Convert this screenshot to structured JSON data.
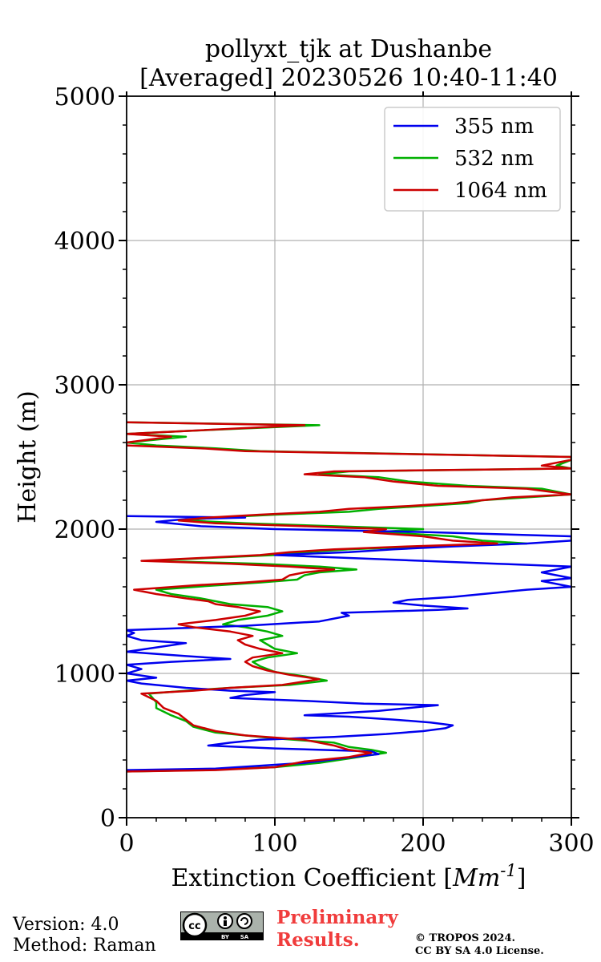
{
  "chart_data": {
    "type": "line",
    "title": "pollyxt_tjk at Dushanbe",
    "subtitle": "[Averaged] 20230526 10:40-11:40",
    "xlabel": "Extinction Coefficient",
    "xlabel_unit": "Mm",
    "xlabel_unit_exp": "-1",
    "ylabel": "Height (m)",
    "xlim": [
      0,
      300
    ],
    "ylim": [
      0,
      5000
    ],
    "xticks": [
      0,
      100,
      200,
      300
    ],
    "yticks": [
      0,
      1000,
      2000,
      3000,
      4000,
      5000
    ],
    "xtick_labels": [
      "0",
      "100",
      "200",
      "300"
    ],
    "ytick_labels": [
      "0",
      "1000",
      "2000",
      "3000",
      "4000",
      "5000"
    ],
    "grid": true,
    "legend_position": "top-right",
    "series": [
      {
        "name": "355 nm",
        "color": "#0000ee",
        "points": [
          [
            0,
            330
          ],
          [
            60,
            340
          ],
          [
            120,
            380
          ],
          [
            160,
            430
          ],
          [
            170,
            440
          ],
          [
            165,
            460
          ],
          [
            100,
            480
          ],
          [
            55,
            500
          ],
          [
            70,
            520
          ],
          [
            90,
            540
          ],
          [
            140,
            560
          ],
          [
            175,
            580
          ],
          [
            200,
            600
          ],
          [
            215,
            620
          ],
          [
            220,
            640
          ],
          [
            205,
            660
          ],
          [
            180,
            680
          ],
          [
            150,
            700
          ],
          [
            120,
            710
          ],
          [
            170,
            740
          ],
          [
            200,
            770
          ],
          [
            210,
            780
          ],
          [
            160,
            790
          ],
          [
            120,
            810
          ],
          [
            70,
            830
          ],
          [
            80,
            850
          ],
          [
            100,
            870
          ],
          [
            70,
            880
          ],
          [
            40,
            900
          ],
          [
            10,
            930
          ],
          [
            0,
            950
          ],
          [
            20,
            970
          ],
          [
            0,
            1000
          ],
          [
            10,
            1030
          ],
          [
            0,
            1060
          ],
          [
            30,
            1080
          ],
          [
            70,
            1100
          ],
          [
            40,
            1120
          ],
          [
            0,
            1150
          ],
          [
            20,
            1180
          ],
          [
            40,
            1210
          ],
          [
            10,
            1230
          ],
          [
            0,
            1260
          ],
          [
            5,
            1280
          ],
          [
            0,
            1300
          ],
          [
            80,
            1330
          ],
          [
            130,
            1360
          ],
          [
            150,
            1400
          ],
          [
            145,
            1420
          ],
          [
            210,
            1440
          ],
          [
            230,
            1450
          ],
          [
            200,
            1470
          ],
          [
            180,
            1490
          ],
          [
            190,
            1510
          ],
          [
            220,
            1530
          ],
          [
            250,
            1560
          ],
          [
            270,
            1580
          ],
          [
            300,
            1600
          ],
          [
            290,
            1620
          ],
          [
            280,
            1640
          ],
          [
            300,
            1660
          ],
          [
            280,
            1700
          ],
          [
            300,
            1740
          ],
          [
            250,
            1760
          ],
          [
            200,
            1780
          ],
          [
            150,
            1800
          ],
          [
            100,
            1820
          ],
          [
            150,
            1840
          ],
          [
            180,
            1860
          ],
          [
            220,
            1880
          ],
          [
            270,
            1900
          ],
          [
            300,
            1920
          ],
          [
            300,
            1950
          ],
          [
            200,
            1980
          ],
          [
            100,
            2000
          ],
          [
            50,
            2020
          ],
          [
            20,
            2050
          ],
          [
            40,
            2070
          ],
          [
            80,
            2080
          ],
          [
            0,
            2090
          ]
        ]
      },
      {
        "name": "532 nm",
        "color": "#00b000",
        "points": [
          [
            0,
            320
          ],
          [
            50,
            330
          ],
          [
            100,
            350
          ],
          [
            130,
            380
          ],
          [
            150,
            410
          ],
          [
            175,
            450
          ],
          [
            165,
            470
          ],
          [
            150,
            490
          ],
          [
            140,
            520
          ],
          [
            100,
            550
          ],
          [
            60,
            590
          ],
          [
            45,
            630
          ],
          [
            40,
            670
          ],
          [
            30,
            710
          ],
          [
            20,
            760
          ],
          [
            20,
            800
          ],
          [
            15,
            860
          ],
          [
            40,
            880
          ],
          [
            70,
            900
          ],
          [
            110,
            920
          ],
          [
            135,
            950
          ],
          [
            120,
            980
          ],
          [
            100,
            1010
          ],
          [
            90,
            1050
          ],
          [
            85,
            1080
          ],
          [
            95,
            1110
          ],
          [
            115,
            1140
          ],
          [
            100,
            1170
          ],
          [
            95,
            1200
          ],
          [
            90,
            1230
          ],
          [
            105,
            1260
          ],
          [
            95,
            1290
          ],
          [
            80,
            1320
          ],
          [
            65,
            1340
          ],
          [
            75,
            1370
          ],
          [
            95,
            1400
          ],
          [
            105,
            1430
          ],
          [
            95,
            1460
          ],
          [
            70,
            1480
          ],
          [
            60,
            1500
          ],
          [
            50,
            1520
          ],
          [
            30,
            1550
          ],
          [
            20,
            1580
          ],
          [
            60,
            1610
          ],
          [
            90,
            1630
          ],
          [
            115,
            1650
          ],
          [
            120,
            1680
          ],
          [
            130,
            1700
          ],
          [
            155,
            1720
          ],
          [
            130,
            1740
          ],
          [
            90,
            1760
          ],
          [
            15,
            1780
          ],
          [
            55,
            1800
          ],
          [
            100,
            1820
          ],
          [
            120,
            1840
          ],
          [
            150,
            1860
          ],
          [
            200,
            1880
          ],
          [
            270,
            1900
          ],
          [
            240,
            1920
          ],
          [
            220,
            1950
          ],
          [
            170,
            1980
          ],
          [
            200,
            2000
          ],
          [
            140,
            2020
          ],
          [
            80,
            2040
          ],
          [
            40,
            2060
          ],
          [
            60,
            2080
          ],
          [
            100,
            2100
          ],
          [
            150,
            2120
          ],
          [
            170,
            2140
          ],
          [
            200,
            2160
          ],
          [
            230,
            2180
          ],
          [
            240,
            2200
          ],
          [
            270,
            2220
          ],
          [
            300,
            2240
          ],
          [
            290,
            2260
          ],
          [
            280,
            2280
          ],
          [
            230,
            2300
          ],
          [
            190,
            2330
          ],
          [
            170,
            2360
          ],
          [
            130,
            2380
          ],
          [
            150,
            2400
          ],
          [
            300,
            2420
          ],
          [
            290,
            2440
          ],
          [
            300,
            2480
          ],
          [
            300,
            2500
          ],
          [
            90,
            2540
          ],
          [
            60,
            2560
          ],
          [
            20,
            2580
          ],
          [
            0,
            2600
          ],
          [
            40,
            2640
          ],
          [
            0,
            2660
          ],
          [
            40,
            2680
          ],
          [
            130,
            2720
          ],
          [
            0,
            2740
          ]
        ]
      },
      {
        "name": "1064 nm",
        "color": "#cc0000",
        "points": [
          [
            0,
            320
          ],
          [
            60,
            330
          ],
          [
            100,
            350
          ],
          [
            120,
            390
          ],
          [
            150,
            420
          ],
          [
            165,
            450
          ],
          [
            150,
            470
          ],
          [
            140,
            500
          ],
          [
            120,
            540
          ],
          [
            80,
            570
          ],
          [
            60,
            600
          ],
          [
            45,
            640
          ],
          [
            40,
            680
          ],
          [
            35,
            720
          ],
          [
            25,
            760
          ],
          [
            20,
            810
          ],
          [
            10,
            860
          ],
          [
            45,
            880
          ],
          [
            70,
            900
          ],
          [
            105,
            920
          ],
          [
            130,
            960
          ],
          [
            110,
            990
          ],
          [
            95,
            1020
          ],
          [
            85,
            1050
          ],
          [
            80,
            1080
          ],
          [
            85,
            1110
          ],
          [
            105,
            1140
          ],
          [
            90,
            1170
          ],
          [
            80,
            1200
          ],
          [
            75,
            1230
          ],
          [
            85,
            1260
          ],
          [
            70,
            1290
          ],
          [
            45,
            1320
          ],
          [
            35,
            1340
          ],
          [
            60,
            1370
          ],
          [
            80,
            1400
          ],
          [
            90,
            1430
          ],
          [
            75,
            1460
          ],
          [
            60,
            1480
          ],
          [
            55,
            1500
          ],
          [
            40,
            1520
          ],
          [
            20,
            1550
          ],
          [
            5,
            1580
          ],
          [
            45,
            1610
          ],
          [
            80,
            1630
          ],
          [
            105,
            1650
          ],
          [
            110,
            1680
          ],
          [
            120,
            1700
          ],
          [
            140,
            1720
          ],
          [
            110,
            1740
          ],
          [
            70,
            1760
          ],
          [
            10,
            1780
          ],
          [
            50,
            1800
          ],
          [
            90,
            1820
          ],
          [
            110,
            1840
          ],
          [
            140,
            1860
          ],
          [
            190,
            1880
          ],
          [
            250,
            1900
          ],
          [
            220,
            1920
          ],
          [
            200,
            1950
          ],
          [
            160,
            1980
          ],
          [
            175,
            2000
          ],
          [
            120,
            2020
          ],
          [
            60,
            2040
          ],
          [
            35,
            2060
          ],
          [
            55,
            2080
          ],
          [
            90,
            2100
          ],
          [
            130,
            2120
          ],
          [
            150,
            2140
          ],
          [
            190,
            2160
          ],
          [
            220,
            2180
          ],
          [
            240,
            2200
          ],
          [
            260,
            2220
          ],
          [
            300,
            2240
          ],
          [
            285,
            2260
          ],
          [
            270,
            2280
          ],
          [
            210,
            2300
          ],
          [
            180,
            2330
          ],
          [
            160,
            2360
          ],
          [
            120,
            2380
          ],
          [
            140,
            2400
          ],
          [
            300,
            2420
          ],
          [
            280,
            2440
          ],
          [
            300,
            2480
          ],
          [
            300,
            2500
          ],
          [
            80,
            2540
          ],
          [
            50,
            2560
          ],
          [
            0,
            2580
          ],
          [
            0,
            2600
          ],
          [
            30,
            2640
          ],
          [
            0,
            2660
          ],
          [
            40,
            2680
          ],
          [
            120,
            2720
          ],
          [
            0,
            2740
          ]
        ]
      }
    ]
  },
  "footer": {
    "version": "Version: 4.0",
    "method": "Method: Raman",
    "preliminary_line1": "Preliminary",
    "preliminary_line2": "Results.",
    "copyright_line1": "© TROPOS 2024.",
    "copyright_line2": "CC BY SA 4.0 License.",
    "license_badge": "cc-by-sa-badge"
  }
}
